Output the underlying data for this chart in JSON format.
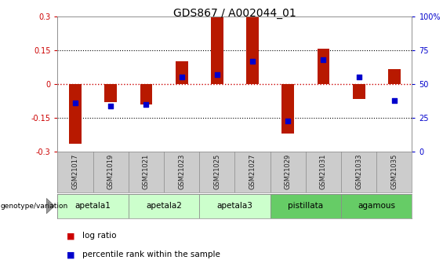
{
  "title": "GDS867 / A002044_01",
  "samples": [
    "GSM21017",
    "GSM21019",
    "GSM21021",
    "GSM21023",
    "GSM21025",
    "GSM21027",
    "GSM21029",
    "GSM21031",
    "GSM21033",
    "GSM21035"
  ],
  "log_ratio": [
    -0.265,
    -0.08,
    -0.09,
    0.1,
    0.295,
    0.298,
    -0.22,
    0.158,
    -0.065,
    0.065
  ],
  "percentile_rank": [
    36,
    34,
    35,
    55,
    57,
    67,
    23,
    68,
    55,
    38
  ],
  "ylim_left": [
    -0.3,
    0.3
  ],
  "ylim_right": [
    0,
    100
  ],
  "yticks_left": [
    -0.3,
    -0.15,
    0,
    0.15,
    0.3
  ],
  "yticks_right": [
    0,
    25,
    50,
    75,
    100
  ],
  "ytick_labels_left": [
    "-0.3",
    "-0.15",
    "0",
    "0.15",
    "0.3"
  ],
  "ytick_labels_right": [
    "0",
    "25",
    "50",
    "75",
    "100%"
  ],
  "bar_color": "#b81900",
  "point_color": "#0000cc",
  "hline_color": "#cc0000",
  "dotted_color": "#000000",
  "bg_color": "#ffffff",
  "sample_bg_color": "#cccccc",
  "bar_width": 0.35,
  "point_size": 22,
  "groups_def": [
    [
      0,
      1,
      "apetala1",
      "#ccffcc"
    ],
    [
      2,
      3,
      "apetala2",
      "#ccffcc"
    ],
    [
      4,
      5,
      "apetala3",
      "#ccffcc"
    ],
    [
      6,
      7,
      "pistillata",
      "#66cc66"
    ],
    [
      8,
      9,
      "agamous",
      "#66cc66"
    ]
  ]
}
